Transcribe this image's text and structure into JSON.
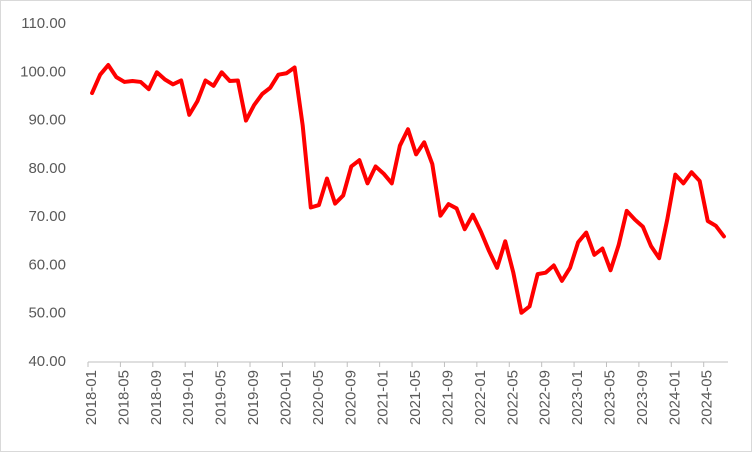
{
  "chart_data": {
    "type": "line",
    "categories": [
      "2018-01",
      null,
      null,
      null,
      "2018-05",
      null,
      null,
      null,
      "2018-09",
      null,
      null,
      null,
      "2019-01",
      null,
      null,
      null,
      "2019-05",
      null,
      null,
      null,
      "2019-09",
      null,
      null,
      null,
      "2020-01",
      null,
      null,
      null,
      "2020-05",
      null,
      null,
      null,
      "2020-09",
      null,
      null,
      null,
      "2021-01",
      null,
      null,
      null,
      "2021-05",
      null,
      null,
      null,
      "2021-09",
      null,
      null,
      null,
      "2022-01",
      null,
      null,
      null,
      "2022-05",
      null,
      null,
      null,
      "2022-09",
      null,
      null,
      null,
      "2023-01",
      null,
      null,
      null,
      "2023-05",
      null,
      null,
      null,
      "2023-09",
      null,
      null,
      null,
      "2024-01",
      null,
      null,
      null,
      "2024-05",
      null,
      null
    ],
    "values": [
      95.7,
      99.5,
      101.5,
      99,
      98,
      98.2,
      98,
      96.5,
      100,
      98.5,
      97.5,
      98.3,
      91.2,
      94,
      98.3,
      97.2,
      100,
      98.2,
      98.3,
      90,
      93.2,
      95.5,
      96.8,
      99.5,
      99.8,
      101,
      89,
      72,
      72.5,
      78,
      72.8,
      74.5,
      80.5,
      81.8,
      77,
      80.5,
      79,
      77,
      84.8,
      88.2,
      83,
      85.5,
      81,
      70.3,
      72.7,
      71.8,
      67.5,
      70.5,
      67,
      63,
      59.5,
      65,
      58.5,
      50.2,
      51.5,
      58.2,
      58.5,
      60,
      56.8,
      59.5,
      64.8,
      66.8,
      62.2,
      63.5,
      59,
      64.2,
      71.3,
      69.5,
      68,
      64,
      61.5,
      69.5,
      78.8,
      77,
      79.3,
      77.5,
      69.2,
      68.2,
      66
    ],
    "color": "#ff0000",
    "ylim": [
      40,
      110
    ],
    "yticks": [
      {
        "value": 40,
        "label": "40.00"
      },
      {
        "value": 50,
        "label": "50.00"
      },
      {
        "value": 60,
        "label": "60.00"
      },
      {
        "value": 70,
        "label": "70.00"
      },
      {
        "value": 80,
        "label": "80.00"
      },
      {
        "value": 90,
        "label": "90.00"
      },
      {
        "value": 100,
        "label": "100.00"
      },
      {
        "value": 110,
        "label": "110.00"
      }
    ],
    "grid": false
  }
}
